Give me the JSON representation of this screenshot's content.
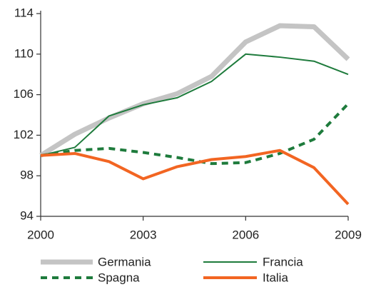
{
  "chart_data": {
    "type": "line",
    "x": [
      2000,
      2001,
      2002,
      2003,
      2004,
      2005,
      2006,
      2007,
      2008,
      2009
    ],
    "xlim": [
      2000,
      2009
    ],
    "xticks": [
      2000,
      2003,
      2006,
      2009
    ],
    "ylim": [
      94,
      114
    ],
    "yticks": [
      94,
      98,
      102,
      106,
      110,
      114
    ],
    "series": [
      {
        "name": "Germania",
        "color": "#c4c4c4",
        "line_width": 7,
        "dashed": false,
        "values": [
          100,
          102.1,
          103.7,
          105.1,
          106.1,
          107.8,
          111.2,
          112.8,
          112.7,
          109.5
        ]
      },
      {
        "name": "Francia",
        "color": "#1e7b3c",
        "line_width": 2,
        "dashed": false,
        "values": [
          100,
          100.8,
          103.9,
          105.0,
          105.7,
          107.3,
          110.0,
          109.7,
          109.3,
          108.0
        ]
      },
      {
        "name": "Spagna",
        "color": "#1e7b3c",
        "line_width": 4,
        "dashed": true,
        "values": [
          100,
          100.5,
          100.7,
          100.3,
          99.8,
          99.2,
          99.3,
          100.2,
          101.6,
          105.1
        ]
      },
      {
        "name": "Italia",
        "color": "#f26522",
        "line_width": 4,
        "dashed": false,
        "values": [
          100,
          100.2,
          99.4,
          97.7,
          98.9,
          99.6,
          99.9,
          100.5,
          98.8,
          95.2
        ]
      }
    ]
  }
}
